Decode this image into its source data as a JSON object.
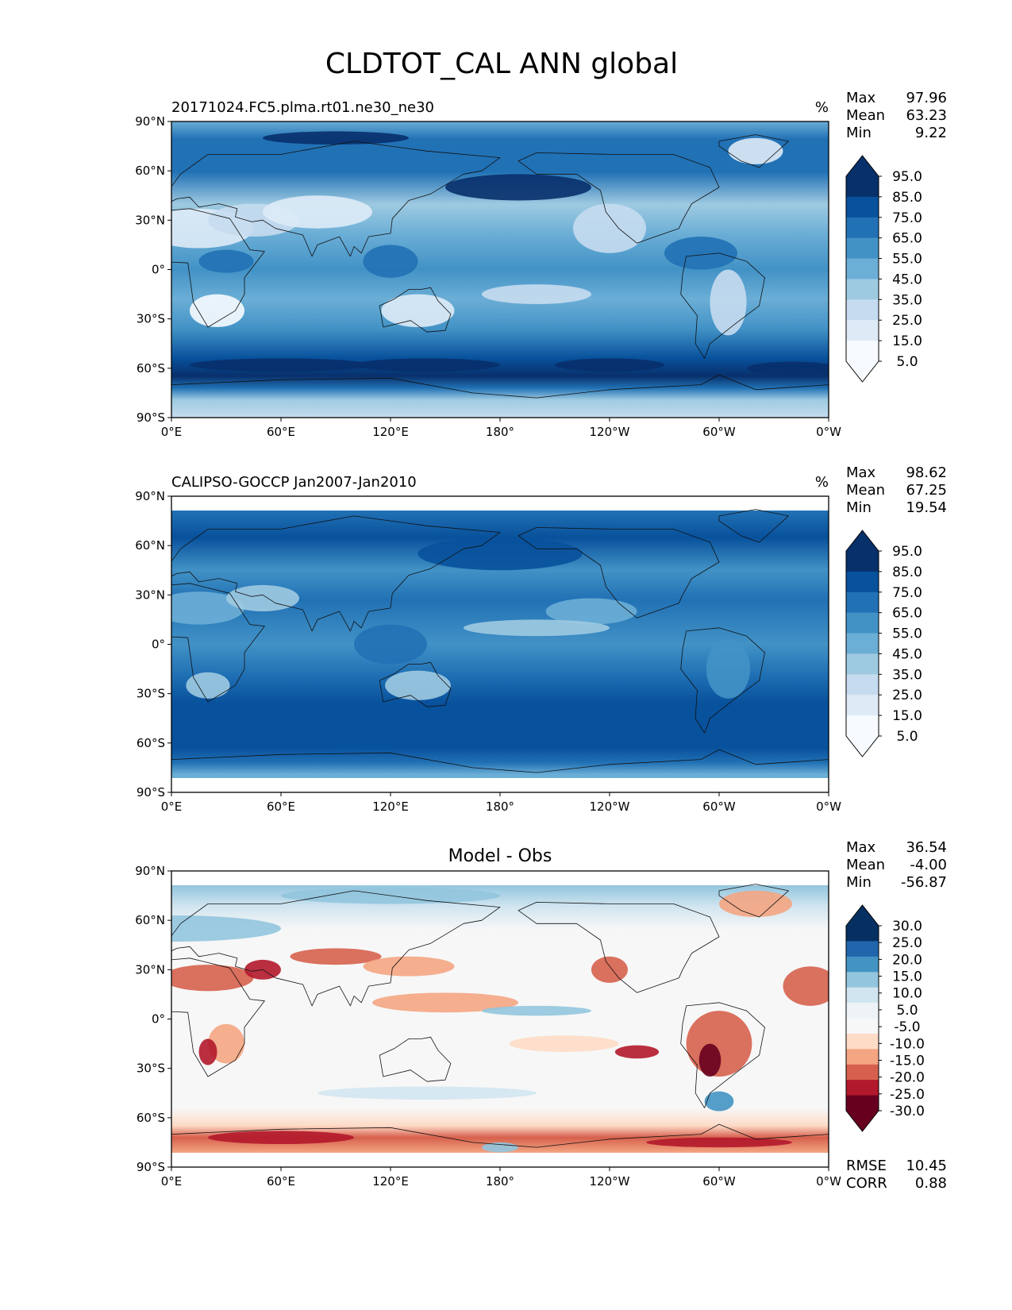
{
  "figure": {
    "title": "CLDTOT_CAL ANN global"
  },
  "axis_ticks": {
    "lon": [
      "0°E",
      "60°E",
      "120°E",
      "180°",
      "120°W",
      "60°W",
      "0°W"
    ],
    "lat": [
      "90°N",
      "60°N",
      "30°N",
      "0°",
      "30°S",
      "60°S",
      "90°S"
    ]
  },
  "panels": [
    {
      "title_left": "20171024.FC5.plma.rt01.ne30_ne30",
      "title_center": "",
      "units": "%",
      "stats": {
        "max_label": "Max",
        "max": "97.96",
        "mean_label": "Mean",
        "mean": "63.23",
        "min_label": "Min",
        "min": "9.22"
      },
      "colorbar": {
        "labels": [
          "95.0",
          "85.0",
          "75.0",
          "65.0",
          "55.0",
          "45.0",
          "35.0",
          "25.0",
          "15.0",
          "5.0"
        ],
        "colors": [
          "#08306b",
          "#08519c",
          "#2171b5",
          "#4292c6",
          "#6baed6",
          "#9ecae1",
          "#c6dbef",
          "#deebf7",
          "#f7fbff"
        ]
      }
    },
    {
      "title_left": "CALIPSO-GOCCP Jan2007-Jan2010",
      "title_center": "",
      "units": "%",
      "stats": {
        "max_label": "Max",
        "max": "98.62",
        "mean_label": "Mean",
        "mean": "67.25",
        "min_label": "Min",
        "min": "19.54"
      },
      "colorbar": {
        "labels": [
          "95.0",
          "85.0",
          "75.0",
          "65.0",
          "55.0",
          "45.0",
          "35.0",
          "25.0",
          "15.0",
          "5.0"
        ],
        "colors": [
          "#08306b",
          "#08519c",
          "#2171b5",
          "#4292c6",
          "#6baed6",
          "#9ecae1",
          "#c6dbef",
          "#deebf7",
          "#f7fbff"
        ]
      }
    },
    {
      "title_left": "",
      "title_center": "Model - Obs",
      "units": "",
      "stats": {
        "max_label": "Max",
        "max": "36.54",
        "mean_label": "Mean",
        "mean": "-4.00",
        "min_label": "Min",
        "min": "-56.87"
      },
      "colorbar": {
        "labels": [
          "30.0",
          "25.0",
          "20.0",
          "15.0",
          "10.0",
          "5.0",
          "-5.0",
          "-10.0",
          "-15.0",
          "-20.0",
          "-25.0",
          "-30.0"
        ],
        "colors": [
          "#053061",
          "#2166ac",
          "#4393c3",
          "#92c5de",
          "#d1e5f0",
          "#eef3f7",
          "#f7f7f7",
          "#fddbc7",
          "#f4a582",
          "#d6604d",
          "#b2182b",
          "#67001f"
        ]
      },
      "metrics": {
        "rmse_label": "RMSE",
        "rmse": "10.45",
        "corr_label": "CORR",
        "corr": "0.88"
      }
    }
  ],
  "chart_data": [
    {
      "type": "heatmap",
      "title": "20171024.FC5.plma.rt01.ne30_ne30",
      "units": "%",
      "xlim": [
        0,
        360
      ],
      "ylim": [
        -90,
        90
      ],
      "x_ticks": [
        0,
        60,
        120,
        180,
        240,
        300,
        360
      ],
      "y_ticks": [
        90,
        60,
        30,
        0,
        -30,
        -60,
        -90
      ],
      "levels": [
        5,
        15,
        25,
        35,
        45,
        55,
        65,
        75,
        85,
        95
      ],
      "stats": {
        "max": 97.96,
        "mean": 63.23,
        "min": 9.22
      },
      "zonal_profile": {
        "lat": [
          80,
          60,
          45,
          30,
          15,
          0,
          -15,
          -30,
          -45,
          -55,
          -65,
          -80
        ],
        "value": [
          75,
          85,
          80,
          55,
          55,
          65,
          60,
          55,
          80,
          92,
          88,
          40
        ]
      }
    },
    {
      "type": "heatmap",
      "title": "CALIPSO-GOCCP Jan2007-Jan2010",
      "units": "%",
      "xlim": [
        0,
        360
      ],
      "ylim": [
        -90,
        90
      ],
      "x_ticks": [
        0,
        60,
        120,
        180,
        240,
        300,
        360
      ],
      "y_ticks": [
        90,
        60,
        30,
        0,
        -30,
        -60,
        -90
      ],
      "levels": [
        5,
        15,
        25,
        35,
        45,
        55,
        65,
        75,
        85,
        95
      ],
      "stats": {
        "max": 98.62,
        "mean": 67.25,
        "min": 19.54
      },
      "zonal_profile": {
        "lat": [
          80,
          60,
          45,
          30,
          15,
          0,
          -15,
          -30,
          -45,
          -55,
          -65,
          -80
        ],
        "value": [
          80,
          85,
          82,
          65,
          62,
          70,
          65,
          62,
          85,
          92,
          88,
          70
        ]
      }
    },
    {
      "type": "heatmap",
      "title": "Model - Obs",
      "xlim": [
        0,
        360
      ],
      "ylim": [
        -90,
        90
      ],
      "x_ticks": [
        0,
        60,
        120,
        180,
        240,
        300,
        360
      ],
      "y_ticks": [
        90,
        60,
        30,
        0,
        -30,
        -60,
        -90
      ],
      "levels": [
        -30,
        -25,
        -20,
        -15,
        -10,
        -5,
        5,
        10,
        15,
        20,
        25,
        30
      ],
      "stats": {
        "max": 36.54,
        "mean": -4.0,
        "min": -56.87
      },
      "metrics": {
        "rmse": 10.45,
        "corr": 0.88
      }
    }
  ]
}
